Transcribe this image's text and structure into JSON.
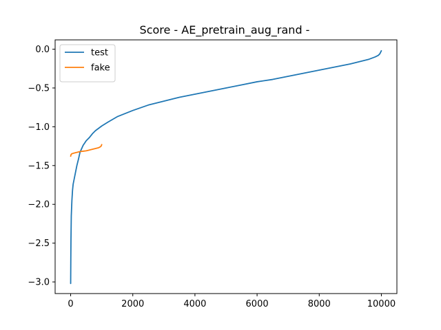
{
  "chart_data": {
    "type": "line",
    "title": "Score - AE_pretrain_aug_rand -",
    "xlabel": "",
    "ylabel": "",
    "xlim": [
      -500,
      10500
    ],
    "ylim": [
      -3.15,
      0.12
    ],
    "xticks": [
      0,
      2000,
      4000,
      6000,
      8000,
      10000
    ],
    "xtick_labels": [
      "0",
      "2000",
      "4000",
      "6000",
      "8000",
      "10000"
    ],
    "yticks": [
      -3.0,
      -2.5,
      -2.0,
      -1.5,
      -1.0,
      -0.5,
      0.0
    ],
    "ytick_labels": [
      "−3.0",
      "−2.5",
      "−2.0",
      "−1.5",
      "−1.0",
      "−0.5",
      "0.0"
    ],
    "grid": false,
    "legend": "top-left",
    "series": [
      {
        "name": "test",
        "color": "#1f77b4",
        "x": [
          0,
          5,
          10,
          20,
          40,
          60,
          80,
          100,
          150,
          200,
          250,
          300,
          400,
          500,
          600,
          700,
          800,
          1000,
          1200,
          1500,
          2000,
          2500,
          3000,
          3500,
          4000,
          4500,
          5000,
          5500,
          6000,
          6500,
          7000,
          7500,
          8000,
          8500,
          9000,
          9300,
          9600,
          9800,
          9900,
          9950,
          10000
        ],
        "y": [
          -3.02,
          -2.7,
          -2.45,
          -2.15,
          -1.95,
          -1.82,
          -1.74,
          -1.7,
          -1.6,
          -1.5,
          -1.42,
          -1.33,
          -1.24,
          -1.18,
          -1.14,
          -1.09,
          -1.05,
          -0.99,
          -0.94,
          -0.87,
          -0.79,
          -0.72,
          -0.67,
          -0.62,
          -0.58,
          -0.54,
          -0.5,
          -0.46,
          -0.42,
          -0.39,
          -0.35,
          -0.31,
          -0.27,
          -0.23,
          -0.19,
          -0.16,
          -0.13,
          -0.1,
          -0.08,
          -0.06,
          -0.02
        ]
      },
      {
        "name": "fake",
        "color": "#ff7f0e",
        "x": [
          0,
          10,
          30,
          60,
          100,
          200,
          300,
          400,
          500,
          600,
          700,
          800,
          900,
          950,
          980,
          1000
        ],
        "y": [
          -1.38,
          -1.36,
          -1.35,
          -1.345,
          -1.34,
          -1.33,
          -1.32,
          -1.315,
          -1.31,
          -1.3,
          -1.29,
          -1.28,
          -1.27,
          -1.26,
          -1.25,
          -1.23
        ]
      }
    ]
  }
}
